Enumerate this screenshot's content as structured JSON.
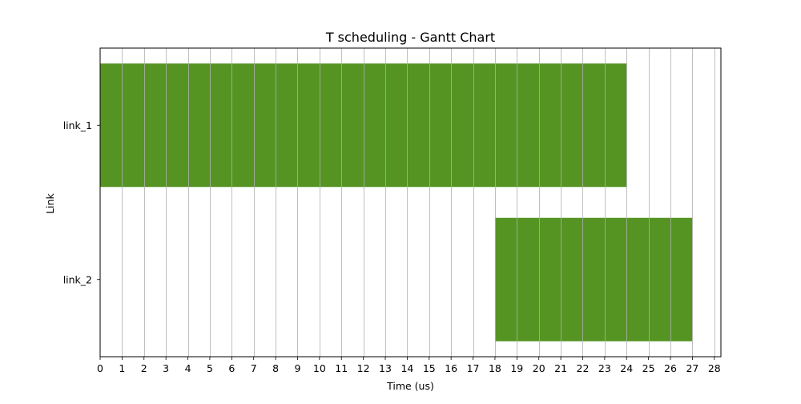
{
  "chart_data": {
    "type": "gantt",
    "title": "T scheduling - Gantt Chart",
    "xlabel": "Time (us)",
    "ylabel": "Link",
    "xlim": [
      0,
      28.3
    ],
    "xticks": [
      0,
      1,
      2,
      3,
      4,
      5,
      6,
      7,
      8,
      9,
      10,
      11,
      12,
      13,
      14,
      15,
      16,
      17,
      18,
      19,
      20,
      21,
      22,
      23,
      24,
      25,
      26,
      27,
      28
    ],
    "categories": [
      "link_1",
      "link_2"
    ],
    "tasks": [
      {
        "link": "link_1",
        "start": 0,
        "end": 24,
        "color": "#559423"
      },
      {
        "link": "link_2",
        "start": 18,
        "end": 27,
        "color": "#559423"
      }
    ],
    "grid": true,
    "grid_color": "#b0b0b0",
    "bar_color": "#559423"
  }
}
